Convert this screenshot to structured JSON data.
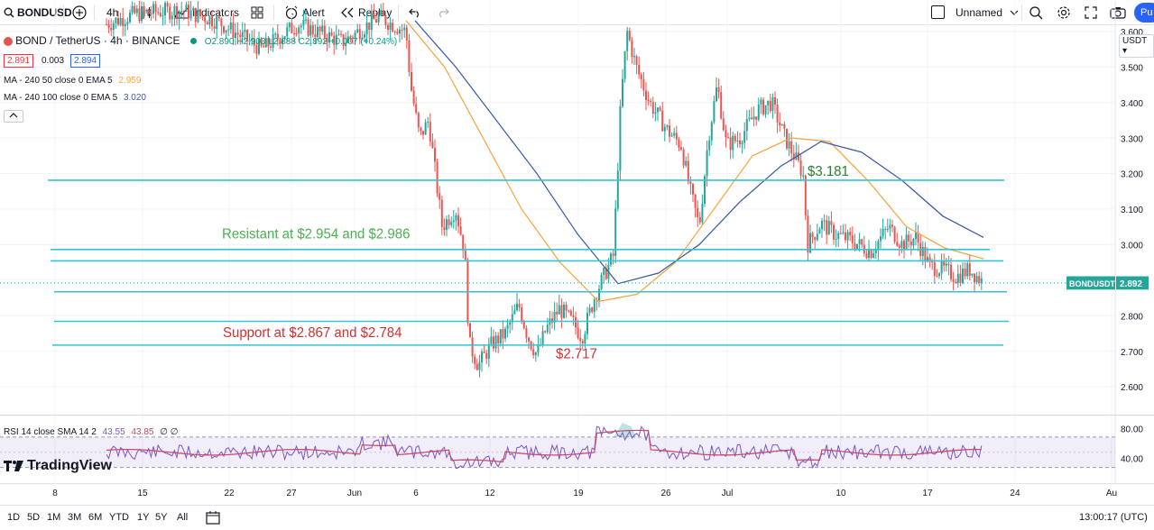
{
  "toolbar": {
    "symbol": "BONDUSD",
    "interval": "4h",
    "indicators_label": "Indicators",
    "alert_label": "Alert",
    "replay_label": "Replay",
    "layout_name": "Unnamed",
    "publish_label": "Pu"
  },
  "legend": {
    "title": "BOND / TetherUS · 4h · BINANCE",
    "ohlc": "O2.890 H2.903 L2.888 C2.892 +0.007 (+0.24%)",
    "bid": "2.891",
    "spread": "0.003",
    "ask": "2.894",
    "ma50_label": "MA - 240 50 close 0 EMA 5",
    "ma50_value": "2.959",
    "ma100_label": "MA - 240 100 close 0 EMA 5",
    "ma100_value": "3.020",
    "rsi_label": "RSI 14 close SMA 14 2",
    "rsi_value1": "43.55",
    "rsi_value2": "43.85",
    "rsi_extra": "∅ ∅"
  },
  "annotations": {
    "resistance": "Resistant at $2.954 and $2.986",
    "support": "Support at $2.867 and $2.784",
    "high_label": "$3.181",
    "low_label": "$2.717"
  },
  "price_axis": {
    "currency": "USDT",
    "ticks": [
      "3.600",
      "3.500",
      "3.400",
      "3.300",
      "3.200",
      "3.100",
      "3.000",
      "2.900",
      "2.800",
      "2.700",
      "2.600"
    ],
    "current_symbol": "BONDUSDT",
    "current_price": "2.892",
    "rsi_ticks": [
      "80.00",
      "40.00"
    ]
  },
  "time_axis": {
    "labels": [
      "8",
      "15",
      "22",
      "27",
      "Jun",
      "6",
      "12",
      "19",
      "26",
      "Jul",
      "10",
      "17",
      "24",
      "Au"
    ]
  },
  "bottom": {
    "ranges": [
      "1D",
      "5D",
      "1M",
      "3M",
      "6M",
      "YTD",
      "1Y",
      "5Y",
      "All"
    ],
    "clock": "13:00:17 (UTC)"
  },
  "branding": "TradingView",
  "colors": {
    "up": "#26a69a",
    "down": "#ef5350",
    "ema50": "#f7a440",
    "ema100": "#3a5aa8",
    "level_lines": "#35c4d4",
    "resistance_text": "#4caf50",
    "support_text": "#d32f2f",
    "rsi": "#7e57c2",
    "rsi_ma": "#c44b6a"
  },
  "chart_data": {
    "type": "line",
    "title": "BOND / TetherUS · 4h · BINANCE",
    "ylim": [
      2.58,
      3.66
    ],
    "y_ticks": [
      2.6,
      2.7,
      2.8,
      2.9,
      3.0,
      3.1,
      3.2,
      3.3,
      3.4,
      3.5,
      3.6
    ],
    "levels": [
      3.181,
      2.986,
      2.954,
      2.867,
      2.784,
      2.717
    ],
    "current_price": 2.892,
    "series": [
      {
        "name": "MA - 240 50 close 0 EMA 5",
        "values": [
          3.63,
          3.5,
          3.3,
          3.1,
          2.95,
          2.84,
          2.86,
          2.95,
          3.1,
          3.25,
          3.3,
          3.29,
          3.18,
          3.05,
          2.99,
          2.96
        ]
      },
      {
        "name": "MA - 240 100 close 0 EMA 5",
        "values": [
          3.63,
          3.5,
          3.35,
          3.2,
          3.03,
          2.89,
          2.92,
          3.0,
          3.12,
          3.22,
          3.29,
          3.26,
          3.18,
          3.08,
          3.02
        ]
      }
    ]
  }
}
